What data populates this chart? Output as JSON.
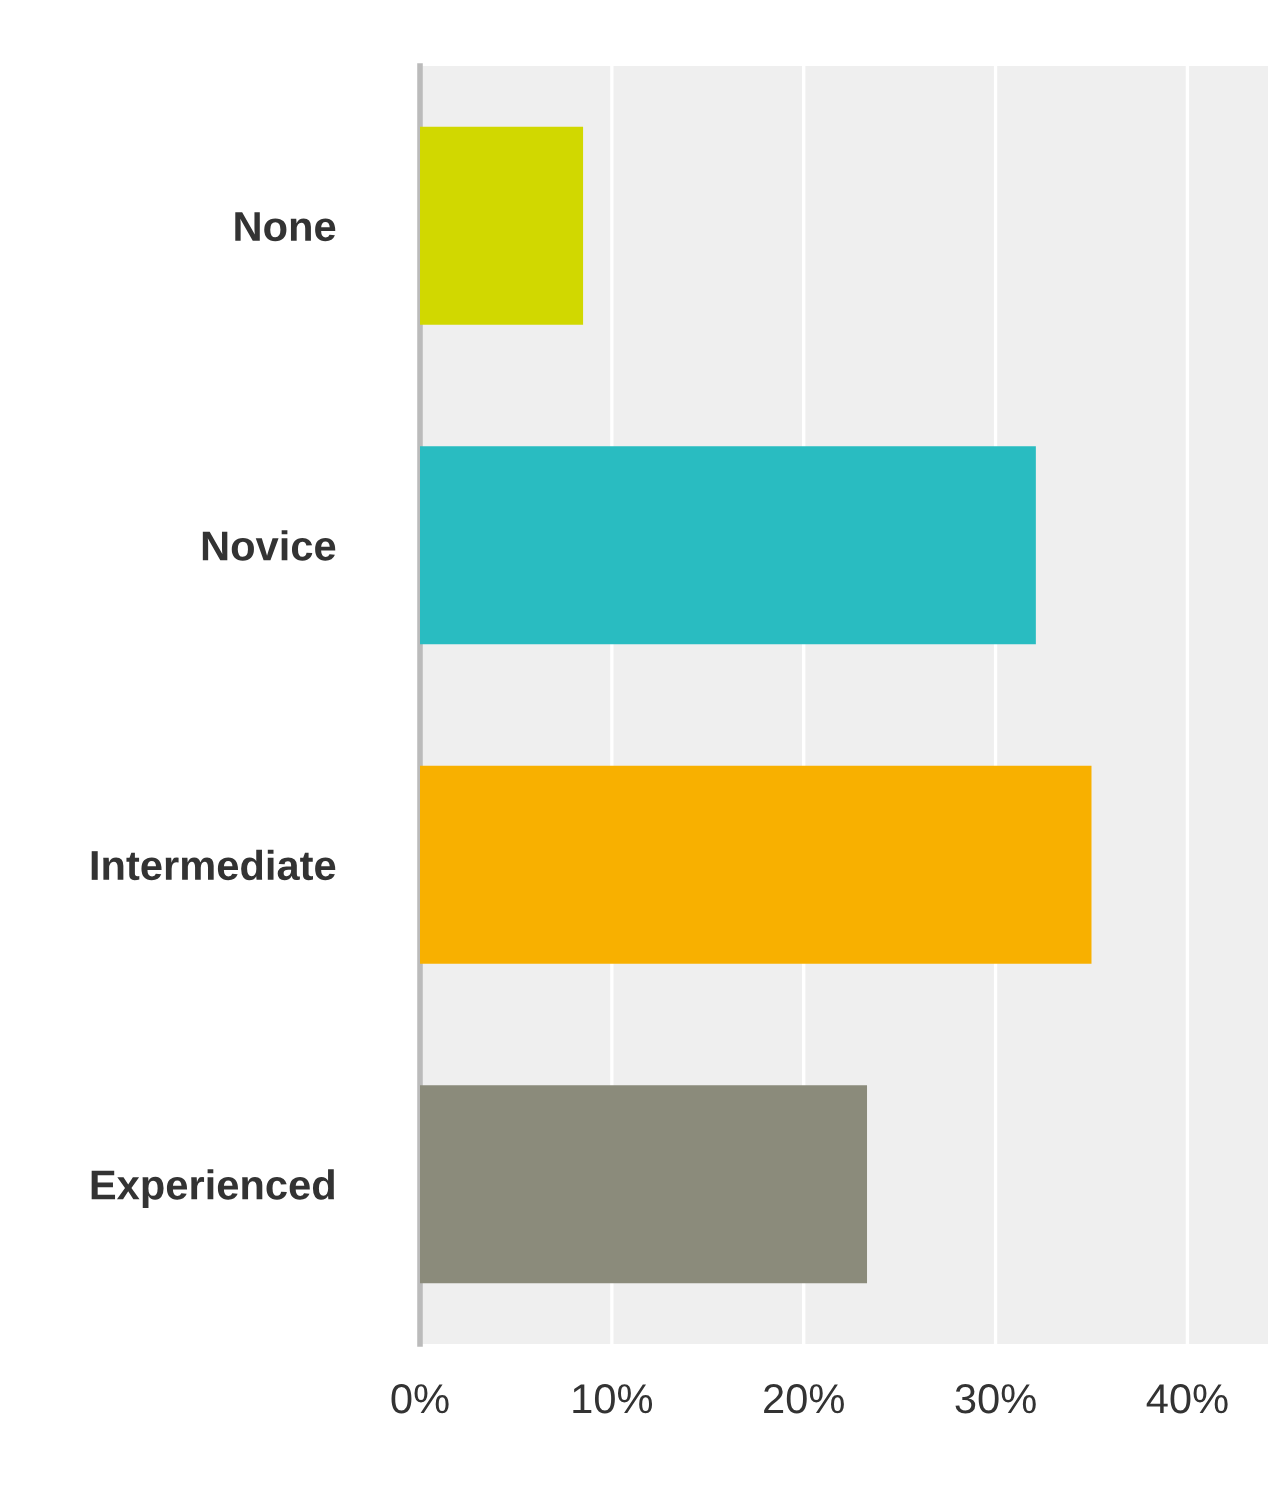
{
  "chart_data": {
    "type": "bar",
    "orientation": "horizontal",
    "categories": [
      "None",
      "Novice",
      "Intermediate",
      "Experienced"
    ],
    "values": [
      8.5,
      32.1,
      35.0,
      23.3
    ],
    "colors": [
      "#d1d800",
      "#29bcc1",
      "#f8b000",
      "#8b8b7b"
    ],
    "xlim": [
      0,
      44.2
    ],
    "xticks": [
      {
        "value": 0,
        "label": "0%"
      },
      {
        "value": 10,
        "label": "10%"
      },
      {
        "value": 20,
        "label": "20%"
      },
      {
        "value": 30,
        "label": "30%"
      },
      {
        "value": 40,
        "label": "40%"
      }
    ],
    "grid": "x"
  }
}
